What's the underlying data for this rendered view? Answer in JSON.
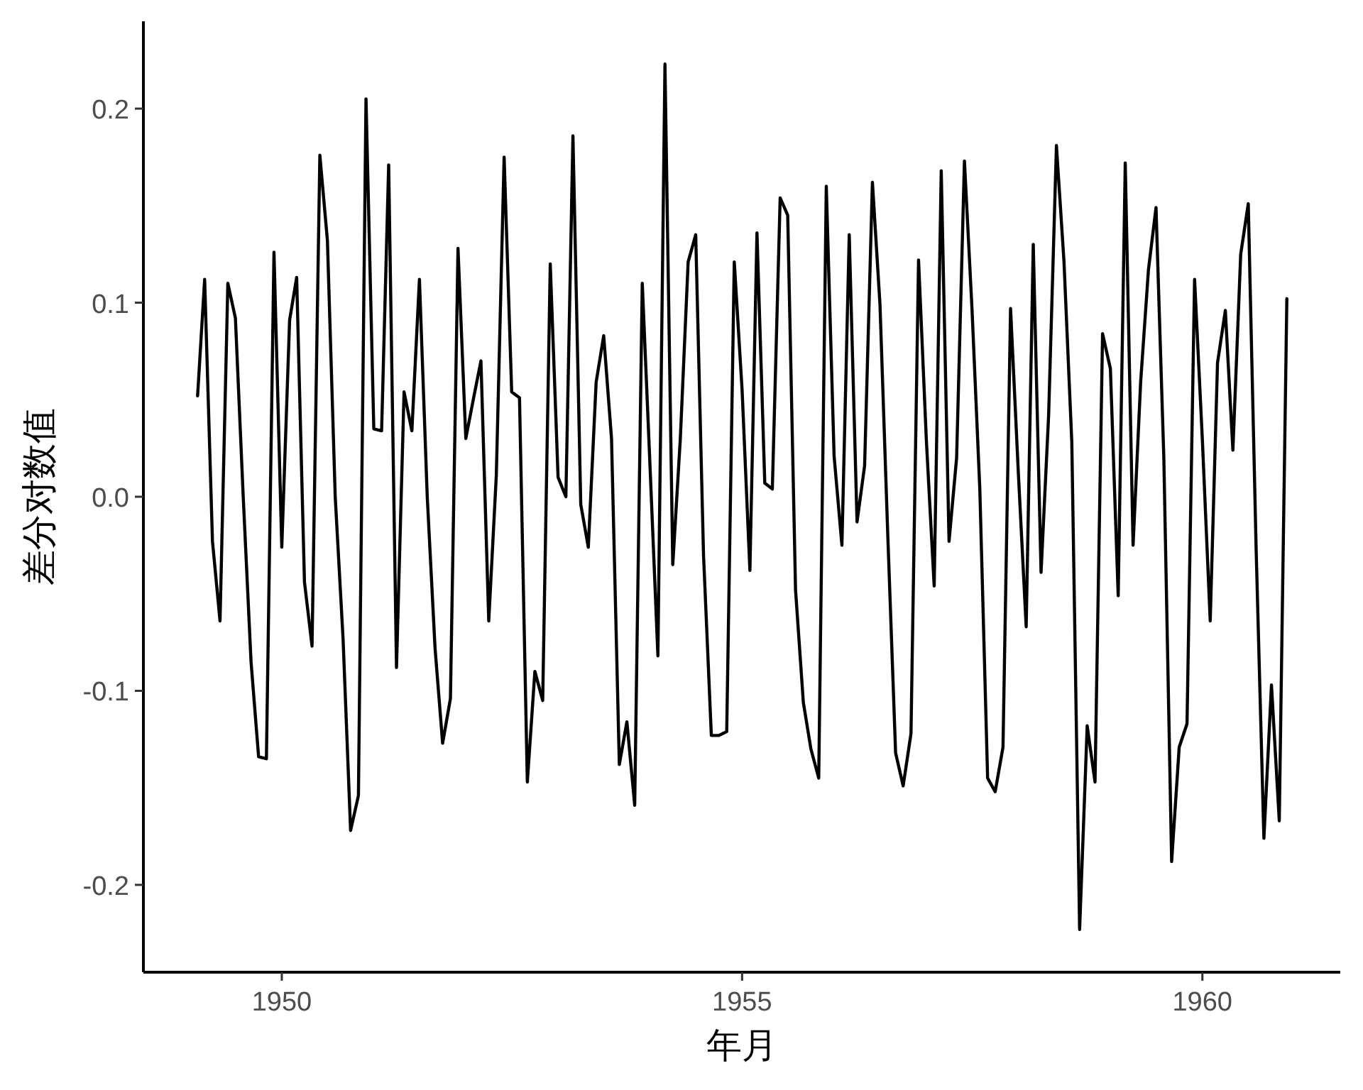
{
  "chart_data": {
    "type": "line",
    "xlabel": "年月",
    "ylabel": "差分对数值",
    "color": "#000000",
    "x": [
      "1949-02",
      "1949-03",
      "1949-04",
      "1949-05",
      "1949-06",
      "1949-07",
      "1949-08",
      "1949-09",
      "1949-10",
      "1949-11",
      "1949-12",
      "1950-01",
      "1950-02",
      "1950-03",
      "1950-04",
      "1950-05",
      "1950-06",
      "1950-07",
      "1950-08",
      "1950-09",
      "1950-10",
      "1950-11",
      "1950-12",
      "1951-01",
      "1951-02",
      "1951-03",
      "1951-04",
      "1951-05",
      "1951-06",
      "1951-07",
      "1951-08",
      "1951-09",
      "1951-10",
      "1951-11",
      "1951-12",
      "1952-01",
      "1952-02",
      "1952-03",
      "1952-04",
      "1952-05",
      "1952-06",
      "1952-07",
      "1952-08",
      "1952-09",
      "1952-10",
      "1952-11",
      "1952-12",
      "1953-01",
      "1953-02",
      "1953-03",
      "1953-04",
      "1953-05",
      "1953-06",
      "1953-07",
      "1953-08",
      "1953-09",
      "1953-10",
      "1953-11",
      "1953-12",
      "1954-01",
      "1954-02",
      "1954-03",
      "1954-04",
      "1954-05",
      "1954-06",
      "1954-07",
      "1954-08",
      "1954-09",
      "1954-10",
      "1954-11",
      "1954-12",
      "1955-01",
      "1955-02",
      "1955-03",
      "1955-04",
      "1955-05",
      "1955-06",
      "1955-07",
      "1955-08",
      "1955-09",
      "1955-10",
      "1955-11",
      "1955-12",
      "1956-01",
      "1956-02",
      "1956-03",
      "1956-04",
      "1956-05",
      "1956-06",
      "1956-07",
      "1956-08",
      "1956-09",
      "1956-10",
      "1956-11",
      "1956-12",
      "1957-01",
      "1957-02",
      "1957-03",
      "1957-04",
      "1957-05",
      "1957-06",
      "1957-07",
      "1957-08",
      "1957-09",
      "1957-10",
      "1957-11",
      "1957-12",
      "1958-01",
      "1958-02",
      "1958-03",
      "1958-04",
      "1958-05",
      "1958-06",
      "1958-07",
      "1958-08",
      "1958-09",
      "1958-10",
      "1958-11",
      "1958-12",
      "1959-01",
      "1959-02",
      "1959-03",
      "1959-04",
      "1959-05",
      "1959-06",
      "1959-07",
      "1959-08",
      "1959-09",
      "1959-10",
      "1959-11",
      "1959-12",
      "1960-01",
      "1960-02",
      "1960-03",
      "1960-04",
      "1960-05",
      "1960-06",
      "1960-07",
      "1960-08",
      "1960-09",
      "1960-10",
      "1960-11",
      "1960-12"
    ],
    "values": [
      0.052,
      0.112,
      -0.023,
      -0.064,
      0.11,
      0.092,
      0.0,
      -0.085,
      -0.134,
      -0.135,
      0.126,
      -0.026,
      0.091,
      0.113,
      -0.044,
      -0.077,
      0.176,
      0.132,
      0.0,
      -0.073,
      -0.172,
      -0.154,
      0.205,
      0.035,
      0.034,
      0.171,
      -0.088,
      0.054,
      0.034,
      0.112,
      0.0,
      -0.078,
      -0.127,
      -0.104,
      0.128,
      0.03,
      0.051,
      0.07,
      -0.064,
      0.011,
      0.175,
      0.054,
      0.051,
      -0.147,
      -0.09,
      -0.105,
      0.12,
      0.01,
      0.0,
      0.186,
      -0.004,
      -0.026,
      0.059,
      0.083,
      0.03,
      -0.138,
      -0.116,
      -0.159,
      0.11,
      0.015,
      -0.082,
      0.223,
      -0.035,
      0.03,
      0.121,
      0.135,
      -0.03,
      -0.123,
      -0.123,
      -0.121,
      0.121,
      0.055,
      -0.038,
      0.136,
      0.007,
      0.004,
      0.154,
      0.145,
      -0.048,
      -0.106,
      -0.13,
      -0.145,
      0.16,
      0.021,
      -0.025,
      0.135,
      -0.013,
      0.016,
      0.162,
      0.099,
      -0.02,
      -0.132,
      -0.149,
      -0.122,
      0.122,
      0.029,
      -0.046,
      0.168,
      -0.023,
      0.02,
      0.173,
      0.097,
      0.004,
      -0.145,
      -0.152,
      -0.129,
      0.097,
      0.012,
      -0.067,
      0.13,
      -0.039,
      0.042,
      0.181,
      0.121,
      0.028,
      -0.223,
      -0.118,
      -0.147,
      0.084,
      0.066,
      -0.051,
      0.172,
      -0.025,
      0.059,
      0.117,
      0.149,
      0.02,
      -0.188,
      -0.129,
      -0.117,
      0.112,
      0.029,
      -0.064,
      0.069,
      0.096,
      0.024,
      0.125,
      0.151,
      -0.026,
      -0.176,
      -0.097,
      -0.167,
      0.102
    ],
    "xlim": [
      "1948-07",
      "1961-07"
    ],
    "xticks": [
      {
        "value": "1950-01-01",
        "label": "1950"
      },
      {
        "value": "1955-01-01",
        "label": "1955"
      },
      {
        "value": "1960-01-01",
        "label": "1960"
      }
    ],
    "ylim": [
      -0.245,
      0.245
    ],
    "yticks": [
      -0.2,
      -0.1,
      {
        "value": 0,
        "label": "0.0"
      },
      0.1,
      0.2
    ]
  }
}
